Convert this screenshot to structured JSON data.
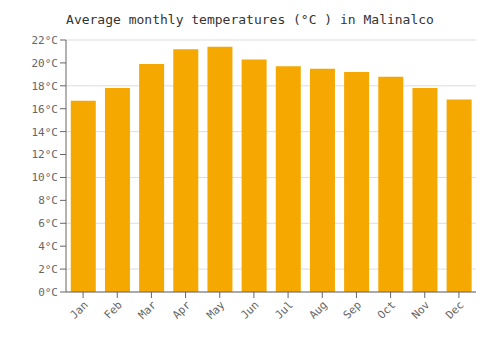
{
  "chart_data": {
    "type": "bar",
    "title": "Average monthly temperatures (°C ) in Malinalco",
    "categories": [
      "Jan",
      "Feb",
      "Mar",
      "Apr",
      "May",
      "Jun",
      "Jul",
      "Aug",
      "Sep",
      "Oct",
      "Nov",
      "Dec"
    ],
    "values": [
      16.7,
      17.8,
      19.9,
      21.2,
      21.4,
      20.3,
      19.7,
      19.5,
      19.2,
      18.8,
      17.8,
      16.8
    ],
    "color": "#F5A800",
    "ylim": [
      0,
      22
    ],
    "yticks": [
      {
        "value": 0,
        "label": "0°C"
      },
      {
        "value": 2,
        "label": "2°C"
      },
      {
        "value": 4,
        "label": "4°C"
      },
      {
        "value": 6,
        "label": "6°C"
      },
      {
        "value": 8,
        "label": "8°C"
      },
      {
        "value": 10,
        "label": "10°C"
      },
      {
        "value": 12,
        "label": "12°C"
      },
      {
        "value": 14,
        "label": "14°C"
      },
      {
        "value": 16,
        "label": "16°C"
      },
      {
        "value": 18,
        "label": "18°C"
      },
      {
        "value": 20,
        "label": "20°C"
      },
      {
        "value": 22,
        "label": "22°C"
      }
    ],
    "grid": true
  }
}
